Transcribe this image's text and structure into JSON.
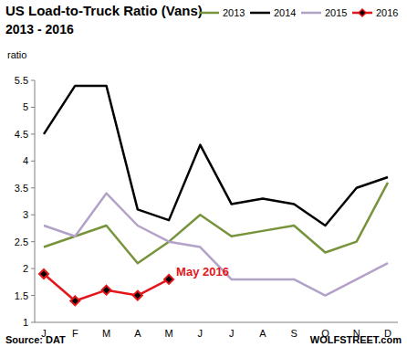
{
  "chart_data": {
    "type": "line",
    "title": "US Load-to-Truck Ratio (Vans)",
    "subtitle": "2013 - 2016",
    "y_label": "ratio",
    "annotation": "May 2016",
    "source": "Source: DAT",
    "credit": "WOLFSTREET.com",
    "categories": [
      "J",
      "F",
      "M",
      "A",
      "M",
      "J",
      "J",
      "A",
      "S",
      "O",
      "N",
      "D"
    ],
    "series": [
      {
        "name": "2013",
        "color": "#77933c",
        "line_style": "solid",
        "values": [
          2.4,
          2.6,
          2.8,
          2.1,
          2.5,
          3.0,
          2.6,
          2.7,
          2.8,
          2.3,
          2.5,
          3.6
        ]
      },
      {
        "name": "2014",
        "color": "#000000",
        "line_style": "solid",
        "values": [
          4.5,
          5.4,
          5.4,
          3.1,
          2.9,
          4.3,
          3.2,
          3.3,
          3.2,
          2.8,
          3.5,
          3.7
        ]
      },
      {
        "name": "2015",
        "color": "#b3a2c7",
        "line_style": "solid",
        "values": [
          2.8,
          2.6,
          3.4,
          2.8,
          2.5,
          2.4,
          1.8,
          1.8,
          1.8,
          1.5,
          1.8,
          2.1
        ]
      },
      {
        "name": "2016",
        "color": "#e3171b",
        "line_style": "solid",
        "marker": "diamond",
        "values": [
          1.9,
          1.4,
          1.6,
          1.5,
          1.8,
          null,
          null,
          null,
          null,
          null,
          null,
          null
        ]
      }
    ],
    "ylim": [
      1,
      5.5
    ],
    "yticks": [
      1,
      1.5,
      2,
      2.5,
      3,
      3.5,
      4,
      4.5,
      5,
      5.5
    ],
    "grid": false,
    "legend": "top-right"
  }
}
